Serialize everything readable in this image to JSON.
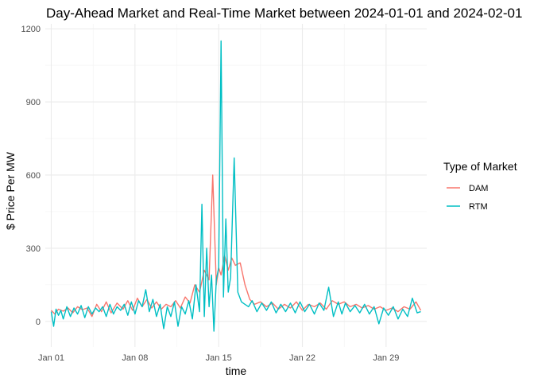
{
  "chart_data": {
    "type": "line",
    "title": "Day-Ahead Market and Real-Time Market between 2024-01-01 and 2024-02-01",
    "xlabel": "time",
    "ylabel": "$ Price Per MW",
    "x_ticks": [
      "Jan 01",
      "Jan 08",
      "Jan 15",
      "Jan 22",
      "Jan 29"
    ],
    "x_tick_values": [
      1,
      8,
      15,
      22,
      29
    ],
    "xlim": [
      0.5,
      32.4
    ],
    "y_ticks": [
      "0",
      "300",
      "600",
      "900",
      "1200"
    ],
    "ylim": [
      -105,
      1220
    ],
    "grid": true,
    "legend": {
      "title": "Type of Market",
      "position": "right"
    },
    "series": [
      {
        "name": "DAM",
        "color": "#F8766D",
        "x": [
          1.0,
          1.3,
          1.6,
          2.0,
          2.4,
          2.8,
          3.2,
          3.6,
          4.0,
          4.4,
          4.8,
          5.2,
          5.6,
          6.0,
          6.5,
          7.0,
          7.4,
          7.8,
          8.2,
          8.6,
          9.0,
          9.4,
          9.8,
          10.2,
          10.6,
          11.0,
          11.4,
          11.8,
          12.2,
          12.6,
          13.0,
          13.4,
          13.8,
          14.2,
          14.5,
          14.8,
          15.0,
          15.2,
          15.5,
          15.8,
          16.1,
          16.4,
          16.8,
          17.2,
          17.6,
          18.0,
          18.5,
          19.0,
          19.5,
          20.0,
          20.5,
          21.0,
          21.5,
          22.0,
          22.5,
          23.0,
          23.5,
          24.0,
          24.5,
          25.0,
          25.5,
          26.0,
          26.5,
          27.0,
          27.5,
          28.0,
          28.5,
          29.0,
          29.5,
          30.0,
          30.5,
          31.0,
          31.5,
          31.9
        ],
        "y": [
          45,
          30,
          50,
          42,
          55,
          35,
          60,
          48,
          55,
          20,
          70,
          40,
          80,
          35,
          75,
          50,
          85,
          45,
          95,
          60,
          90,
          55,
          80,
          50,
          70,
          60,
          85,
          55,
          100,
          75,
          150,
          120,
          210,
          170,
          600,
          150,
          220,
          190,
          270,
          210,
          260,
          230,
          240,
          150,
          90,
          70,
          80,
          60,
          75,
          50,
          70,
          55,
          80,
          45,
          70,
          60,
          75,
          50,
          85,
          70,
          80,
          60,
          70,
          55,
          65,
          50,
          60,
          45,
          55,
          40,
          60,
          50,
          80,
          45
        ]
      },
      {
        "name": "RTM",
        "color": "#00BFC4",
        "x": [
          1.0,
          1.2,
          1.4,
          1.6,
          1.8,
          2.0,
          2.3,
          2.6,
          2.9,
          3.2,
          3.5,
          3.8,
          4.1,
          4.4,
          4.7,
          5.0,
          5.3,
          5.6,
          5.9,
          6.2,
          6.5,
          6.8,
          7.1,
          7.4,
          7.7,
          8.0,
          8.3,
          8.6,
          8.9,
          9.2,
          9.5,
          9.8,
          10.1,
          10.4,
          10.7,
          11.0,
          11.3,
          11.6,
          11.9,
          12.2,
          12.5,
          12.8,
          13.1,
          13.4,
          13.6,
          13.8,
          14.0,
          14.2,
          14.4,
          14.6,
          14.8,
          15.0,
          15.2,
          15.4,
          15.6,
          15.8,
          16.0,
          16.3,
          16.6,
          16.9,
          17.2,
          17.5,
          17.8,
          18.2,
          18.6,
          19.0,
          19.4,
          19.8,
          20.2,
          20.6,
          21.0,
          21.4,
          21.8,
          22.2,
          22.6,
          23.0,
          23.4,
          23.8,
          24.2,
          24.6,
          25.0,
          25.3,
          25.6,
          26.0,
          26.4,
          26.8,
          27.2,
          27.6,
          28.0,
          28.4,
          28.8,
          29.2,
          29.6,
          30.0,
          30.4,
          30.8,
          31.2,
          31.6,
          31.9
        ],
        "y": [
          40,
          -20,
          50,
          25,
          45,
          10,
          60,
          20,
          55,
          30,
          65,
          15,
          60,
          30,
          55,
          40,
          60,
          20,
          70,
          30,
          60,
          45,
          70,
          25,
          80,
          30,
          85,
          60,
          130,
          40,
          90,
          20,
          70,
          -30,
          60,
          20,
          80,
          -20,
          60,
          30,
          85,
          10,
          150,
          40,
          480,
          20,
          300,
          60,
          190,
          -40,
          170,
          220,
          1150,
          100,
          420,
          120,
          180,
          670,
          120,
          80,
          70,
          60,
          85,
          40,
          75,
          45,
          80,
          35,
          70,
          40,
          75,
          35,
          80,
          40,
          70,
          30,
          75,
          45,
          140,
          20,
          80,
          30,
          75,
          40,
          65,
          35,
          70,
          30,
          60,
          -10,
          55,
          25,
          60,
          10,
          50,
          20,
          95,
          35,
          40
        ]
      }
    ]
  }
}
